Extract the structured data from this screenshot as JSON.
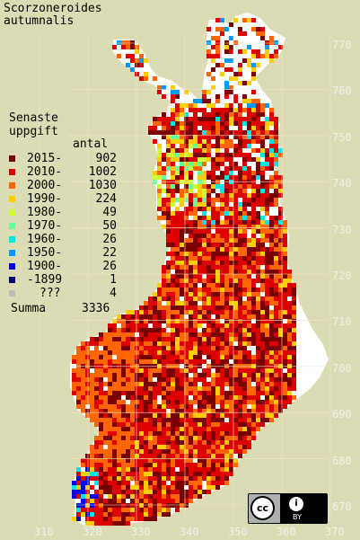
{
  "title": {
    "line1": "Scorzoneroides",
    "line2": "autumnalis"
  },
  "legend": {
    "heading1": "Senaste",
    "heading2": "uppgift",
    "count_header": "antal",
    "rows": [
      {
        "label": "2015-",
        "count": "902",
        "color": "#780000"
      },
      {
        "label": "2010-",
        "count": "1002",
        "color": "#dc0000"
      },
      {
        "label": "2000-",
        "count": "1030",
        "color": "#ff6600"
      },
      {
        "label": "1990-",
        "count": "224",
        "color": "#ffcc00"
      },
      {
        "label": "1980-",
        "count": "49",
        "color": "#ccff33"
      },
      {
        "label": "1970-",
        "count": "50",
        "color": "#66ff99"
      },
      {
        "label": "1960-",
        "count": "26",
        "color": "#00e6e6"
      },
      {
        "label": "1950-",
        "count": "22",
        "color": "#0099ff"
      },
      {
        "label": "1900-",
        "count": "26",
        "color": "#0000e6"
      },
      {
        "label": "-1899",
        "count": "1",
        "color": "#000080"
      },
      {
        "label": "???",
        "count": "4",
        "color": "#bbbbbb"
      }
    ],
    "total_label": "Summa",
    "total_count": "3336"
  },
  "axes": {
    "y_ticks": [
      "770",
      "760",
      "750",
      "740",
      "730",
      "720",
      "710",
      "700",
      "690",
      "680",
      "670"
    ],
    "x_ticks": [
      "310",
      "320",
      "330",
      "340",
      "350",
      "360",
      "370"
    ]
  },
  "license": {
    "cc": "cc",
    "by_icon": "i",
    "by": "BY"
  },
  "colors": {
    "background": "#dcdcb4",
    "land_unknown": "#ffffff",
    "grid_line": "#f0e6d2"
  }
}
